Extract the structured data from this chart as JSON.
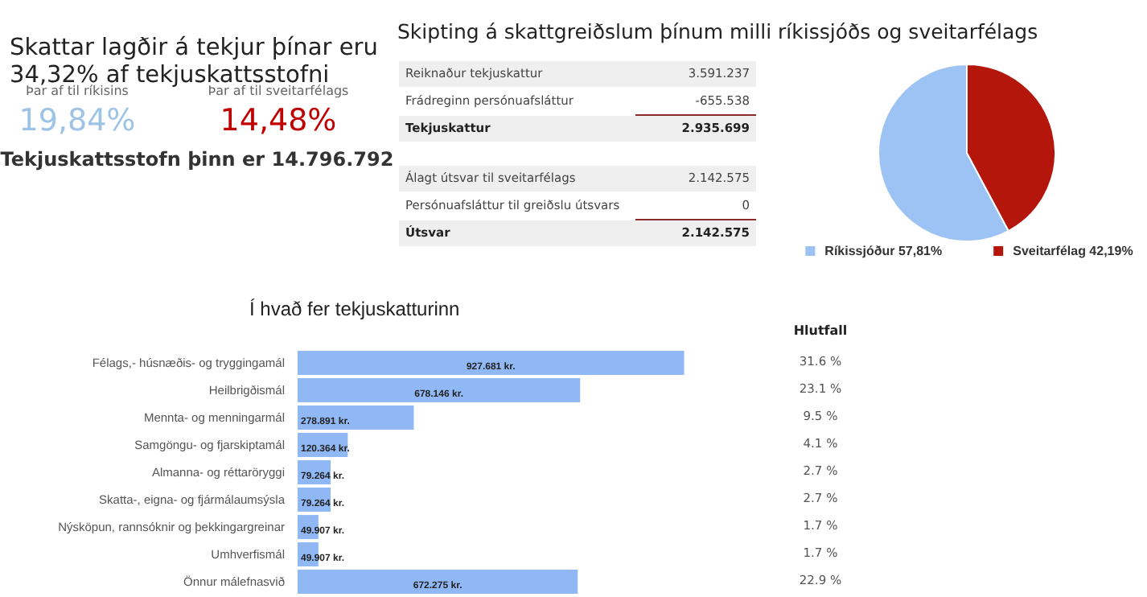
{
  "chart_data": [
    {
      "type": "other",
      "title": "Skattar lagðir á tekjur þínar eru 34,32% af tekjuskattsstofni",
      "categories": [
        "Þar af til ríkisins",
        "Þar af til sveitarfélags"
      ],
      "value_labels": [
        "19,84%",
        "14,48%"
      ],
      "colors": [
        "#9dc3e6",
        "#c00000"
      ],
      "annotations": [
        "Tekjuskattsstofn þinn er 14.796.792"
      ]
    },
    {
      "type": "other",
      "title": "Skipting á skattgreiðslum þínum milli ríkissjóðs og sveitarfélags",
      "categories": [
        "Reiknaður tekjuskattur",
        "Frádreginn persónuafsláttur",
        "Tekjuskattur"
      ],
      "value_labels": [
        "3.591.237",
        "-655.538",
        "2.935.699"
      ]
    },
    {
      "type": "other",
      "categories": [
        "Álagt útsvar til sveitarfélags",
        "Persónuafsláttur til greiðslu útsvars",
        "Útsvar"
      ],
      "value_labels": [
        "2.142.575",
        "0",
        "2.142.575"
      ]
    },
    {
      "type": "pie",
      "categories": [
        "Ríkissjóður",
        "Sveitarfélag"
      ],
      "values": [
        57.81,
        42.19
      ],
      "value_labels": [
        "57,81%",
        "42,19%"
      ],
      "colors": [
        "#9dc3f5",
        "#b5160b"
      ],
      "legend": "bottom"
    },
    {
      "type": "bar",
      "orientation": "horizontal",
      "title": "Í hvað fer tekjuskatturinn",
      "categories": [
        "Félags,- húsnæðis- og tryggingamál",
        "Heilbrigðismál",
        "Mennta- og menningarmál",
        "Samgöngu- og fjarskiptamál",
        "Almanna- og réttaröryggi",
        "Skatta-, eigna- og fjármálaumsýsla",
        "Nýsköpun, rannsóknir og þekkingargreinar",
        "Umhverfismál",
        "Önnur málefnasvið"
      ],
      "series": [
        {
          "color": "#8fb8f5",
          "values": [
            927681,
            678146,
            278891,
            120364,
            79264,
            79264,
            49907,
            49907,
            672275
          ],
          "value_labels": [
            "927.681 kr.",
            "678.146 kr.",
            "278.891 kr.",
            "120.364 kr.",
            "79.264 kr.",
            "79.264 kr.",
            "49.907 kr.",
            "49.907 kr.",
            "672.275 kr."
          ]
        }
      ],
      "legend": false
    },
    {
      "type": "other",
      "title": "Hlutfall",
      "value_labels": [
        "31.6 %",
        "23.1 %",
        "9.5 %",
        "4.1 %",
        "2.7 %",
        "2.7 %",
        "1.7 %",
        "1.7 %",
        "22.9 %"
      ]
    }
  ]
}
